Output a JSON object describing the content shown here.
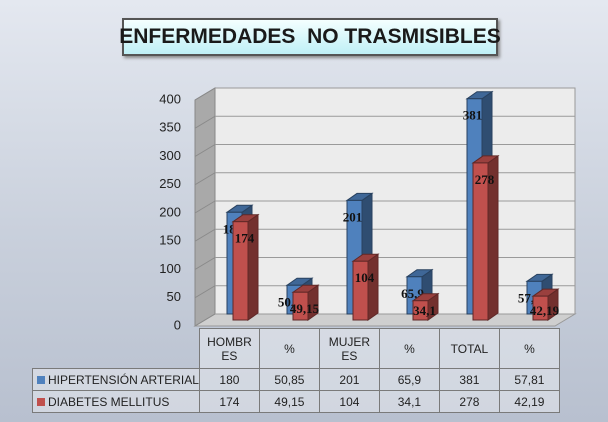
{
  "chart_data": {
    "type": "bar3d",
    "title": "ENFERMEDADES  NO TRASMISIBLES",
    "categories": [
      "HOMBRES",
      "%",
      "MUJERES",
      "%",
      "TOTAL",
      "%"
    ],
    "series": [
      {
        "name": "HIPERTENSIÓN ARTERIAL",
        "color": "#4f81bd",
        "values": [
          180,
          50.85,
          201,
          65.9,
          381,
          57.81
        ],
        "value_labels": [
          "180",
          "50,85",
          "201",
          "65,9",
          "381",
          "57,81"
        ]
      },
      {
        "name": "DIABETES MELLITUS",
        "color": "#c0504d",
        "values": [
          174,
          49.15,
          104,
          34.1,
          278,
          42.19
        ],
        "value_labels": [
          "174",
          "49,15",
          "104",
          "34,1",
          "278",
          "42,19"
        ]
      }
    ],
    "ylim": [
      0,
      400
    ],
    "yticks": [
      0,
      50,
      100,
      150,
      200,
      250,
      300,
      350,
      400
    ],
    "grid": true,
    "legend": "table"
  }
}
